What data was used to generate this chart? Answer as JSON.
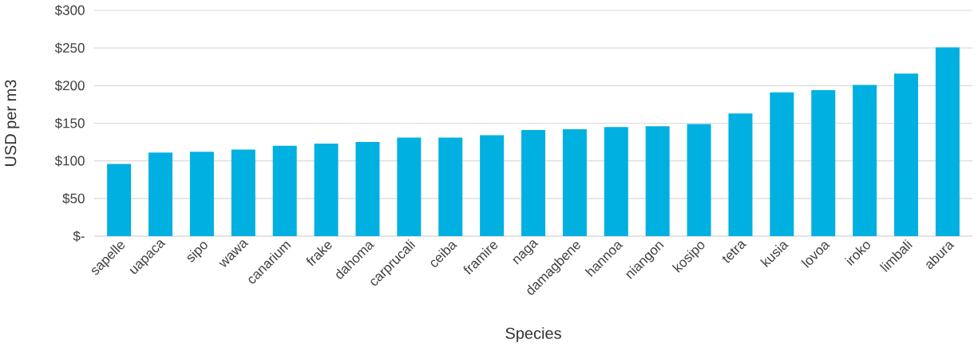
{
  "chart_data": {
    "type": "bar",
    "xlabel": "Species",
    "ylabel": "USD per m3",
    "categories": [
      "sapelle",
      "uapaca",
      "sipo",
      "wawa",
      "canarium",
      "frake",
      "dahoma",
      "carprucali",
      "ceiba",
      "framire",
      "naga",
      "damagbene",
      "hannoa",
      "niangon",
      "kosipo",
      "tetra",
      "kusia",
      "lovoa",
      "iroko",
      "limbali",
      "abura"
    ],
    "values": [
      96,
      111,
      112,
      115,
      120,
      123,
      125,
      131,
      131,
      134,
      141,
      142,
      145,
      146,
      149,
      163,
      191,
      194,
      201,
      216,
      251
    ],
    "color": "#00b0e0",
    "ylim": [
      0,
      300
    ],
    "yticks": [
      {
        "value": 0,
        "label": "$-"
      },
      {
        "value": 50,
        "label": "$50"
      },
      {
        "value": 100,
        "label": "$100"
      },
      {
        "value": 150,
        "label": "$150"
      },
      {
        "value": 200,
        "label": "$200"
      },
      {
        "value": 250,
        "label": "$250"
      },
      {
        "value": 300,
        "label": "$300"
      }
    ],
    "grid": "y"
  }
}
